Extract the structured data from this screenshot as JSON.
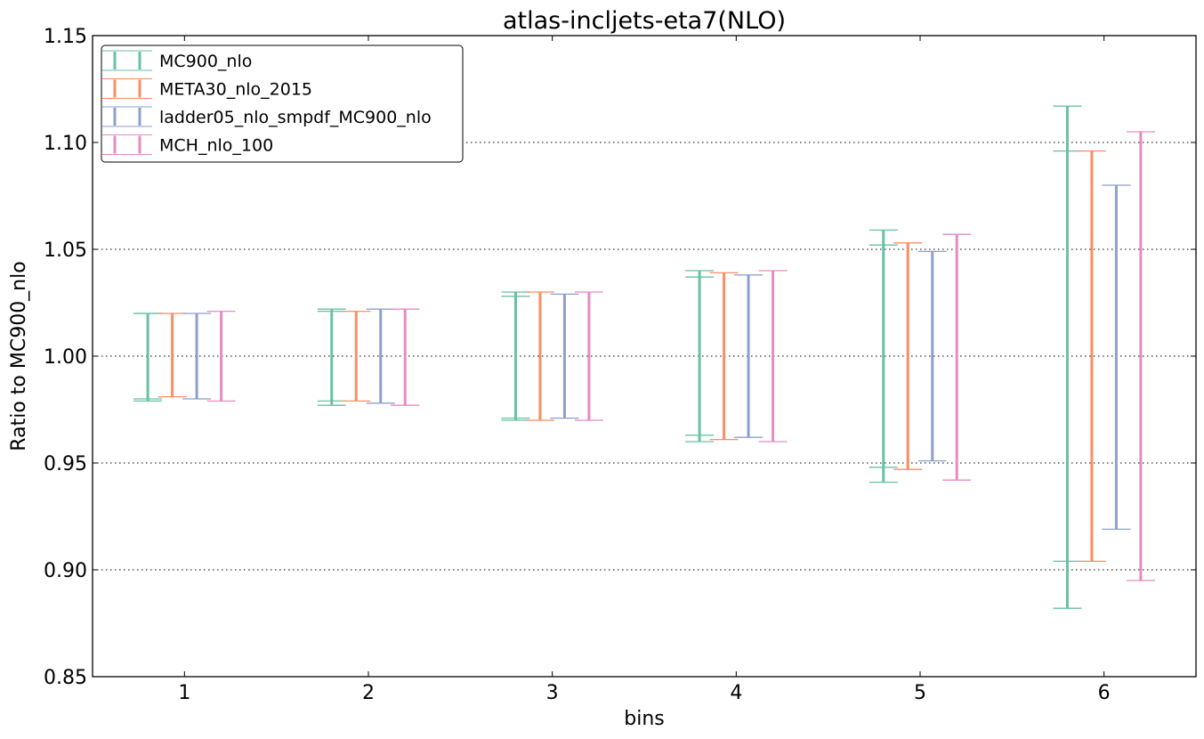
{
  "chart_data": {
    "type": "errorbar",
    "title": "atlas-incljets-eta7(NLO)",
    "xlabel": "bins",
    "ylabel": "Ratio to MC900_nlo",
    "xlim": [
      0.5,
      6.5
    ],
    "ylim": [
      0.85,
      1.15
    ],
    "x_ticks": [
      "1",
      "2",
      "3",
      "4",
      "5",
      "6"
    ],
    "y_ticks": [
      "0.85",
      "0.90",
      "0.95",
      "1.00",
      "1.05",
      "1.10",
      "1.15"
    ],
    "grid": "horizontal-dotted",
    "legend_position": "top-left",
    "series": [
      {
        "name": "MC900_nlo",
        "color": "#66c2a5",
        "bins": [
          {
            "x": 1,
            "low": 0.979,
            "high": 1.02,
            "inner_low": 0.98,
            "inner_high": 1.02
          },
          {
            "x": 2,
            "low": 0.977,
            "high": 1.022,
            "inner_low": 0.979,
            "inner_high": 1.021
          },
          {
            "x": 3,
            "low": 0.97,
            "high": 1.03,
            "inner_low": 0.971,
            "inner_high": 1.028
          },
          {
            "x": 4,
            "low": 0.96,
            "high": 1.04,
            "inner_low": 0.963,
            "inner_high": 1.037
          },
          {
            "x": 5,
            "low": 0.941,
            "high": 1.059,
            "inner_low": 0.948,
            "inner_high": 1.052
          },
          {
            "x": 6,
            "low": 0.882,
            "high": 1.117,
            "inner_low": 0.904,
            "inner_high": 1.096
          }
        ]
      },
      {
        "name": "META30_nlo_2015",
        "color": "#fc8d62",
        "bins": [
          {
            "x": 1,
            "low": 0.981,
            "high": 1.02
          },
          {
            "x": 2,
            "low": 0.979,
            "high": 1.021
          },
          {
            "x": 3,
            "low": 0.97,
            "high": 1.03
          },
          {
            "x": 4,
            "low": 0.961,
            "high": 1.039
          },
          {
            "x": 5,
            "low": 0.947,
            "high": 1.053
          },
          {
            "x": 6,
            "low": 0.904,
            "high": 1.096
          }
        ]
      },
      {
        "name": "ladder05_nlo_smpdf_MC900_nlo",
        "color": "#8da0cb",
        "bins": [
          {
            "x": 1,
            "low": 0.98,
            "high": 1.02
          },
          {
            "x": 2,
            "low": 0.978,
            "high": 1.022
          },
          {
            "x": 3,
            "low": 0.971,
            "high": 1.029
          },
          {
            "x": 4,
            "low": 0.962,
            "high": 1.038
          },
          {
            "x": 5,
            "low": 0.951,
            "high": 1.049
          },
          {
            "x": 6,
            "low": 0.919,
            "high": 1.08
          }
        ]
      },
      {
        "name": "MCH_nlo_100",
        "color": "#e78ac3",
        "bins": [
          {
            "x": 1,
            "low": 0.979,
            "high": 1.021
          },
          {
            "x": 2,
            "low": 0.977,
            "high": 1.022
          },
          {
            "x": 3,
            "low": 0.97,
            "high": 1.03
          },
          {
            "x": 4,
            "low": 0.96,
            "high": 1.04
          },
          {
            "x": 5,
            "low": 0.942,
            "high": 1.057
          },
          {
            "x": 6,
            "low": 0.895,
            "high": 1.105
          }
        ]
      }
    ]
  }
}
